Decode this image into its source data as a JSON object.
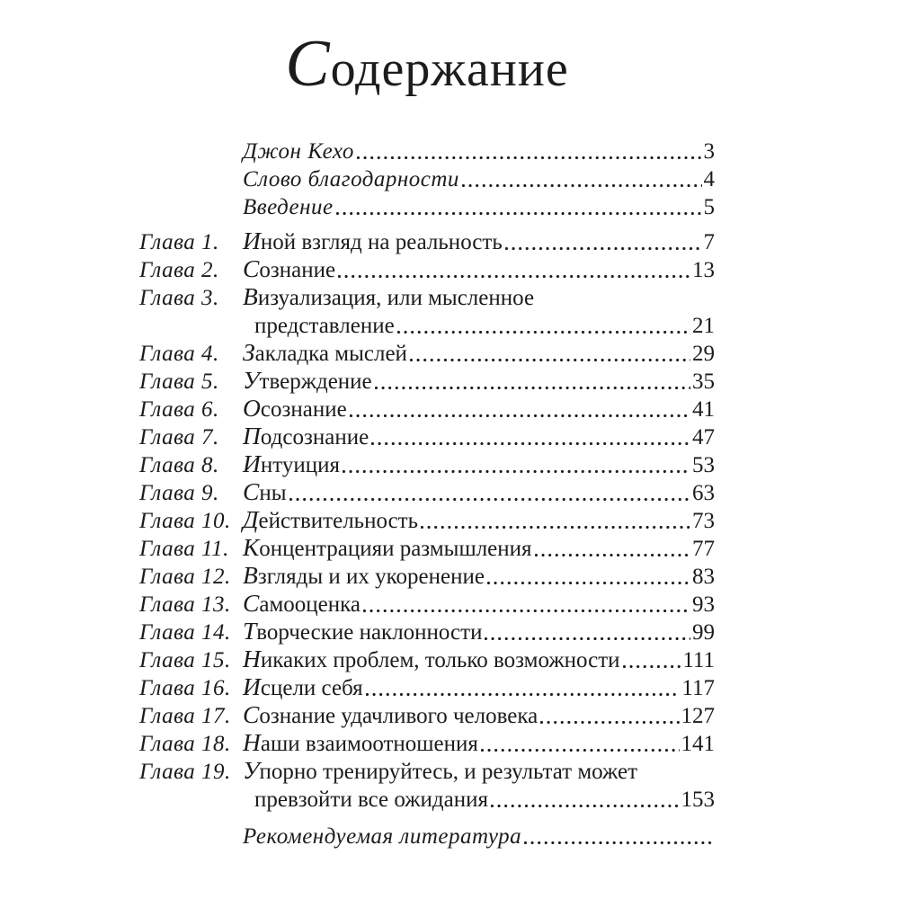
{
  "page": {
    "title": "Содержание"
  },
  "colors": {
    "text": "#1c1c1c",
    "background": "#ffffff"
  },
  "toc": {
    "entries": [
      {
        "label": "",
        "script": true,
        "lines": [
          "Джон Кехо"
        ],
        "page": "3"
      },
      {
        "label": "",
        "script": true,
        "lines": [
          "Слово благодарности"
        ],
        "page": "4"
      },
      {
        "label": "",
        "script": true,
        "lines": [
          "Введение"
        ],
        "page": "5"
      },
      {
        "label": "Глава 1.",
        "script": false,
        "lines": [
          "Иной взгляд на реальность"
        ],
        "page": "7"
      },
      {
        "label": "Глава 2.",
        "script": false,
        "lines": [
          "Сознание"
        ],
        "page": "13"
      },
      {
        "label": "Глава 3.",
        "script": false,
        "lines": [
          "Визуализация, или мысленное",
          "представление"
        ],
        "page": "21"
      },
      {
        "label": "Глава 4.",
        "script": false,
        "lines": [
          "Закладка мыслей"
        ],
        "page": "29"
      },
      {
        "label": "Глава 5.",
        "script": false,
        "lines": [
          "Утверждение"
        ],
        "page": "35"
      },
      {
        "label": "Глава 6.",
        "script": false,
        "lines": [
          "Осознание"
        ],
        "page": "41"
      },
      {
        "label": "Глава 7.",
        "script": false,
        "lines": [
          "Подсознание"
        ],
        "page": "47"
      },
      {
        "label": "Глава 8.",
        "script": false,
        "lines": [
          "Интуиция"
        ],
        "page": "53"
      },
      {
        "label": "Глава 9.",
        "script": false,
        "lines": [
          "Сны"
        ],
        "page": "63"
      },
      {
        "label": "Глава 10.",
        "script": false,
        "lines": [
          "Действительность"
        ],
        "page": "73"
      },
      {
        "label": "Глава 11.",
        "script": false,
        "lines": [
          "Концентрацияи размышления"
        ],
        "page": "77"
      },
      {
        "label": "Глава 12.",
        "script": false,
        "lines": [
          "Взгляды и их укоренение"
        ],
        "page": "83"
      },
      {
        "label": "Глава 13.",
        "script": false,
        "lines": [
          "Самооценка"
        ],
        "page": "93"
      },
      {
        "label": "Глава 14.",
        "script": false,
        "lines": [
          "Творческие наклонности"
        ],
        "page": "99"
      },
      {
        "label": "Глава 15.",
        "script": false,
        "lines": [
          "Никаких проблем, только возможности"
        ],
        "page": "111"
      },
      {
        "label": "Глава 16.",
        "script": false,
        "lines": [
          "Исцели себя"
        ],
        "page": "117"
      },
      {
        "label": "Глава 17.",
        "script": false,
        "lines": [
          "Сознание удачливого человека"
        ],
        "page": "127"
      },
      {
        "label": "Глава 18.",
        "script": false,
        "lines": [
          "Наши взаимоотношения"
        ],
        "page": "141"
      },
      {
        "label": "Глава 19.",
        "script": false,
        "lines": [
          "Упорно тренируйтесь, и результат может",
          "превзойти все ожидания"
        ],
        "page": "153"
      },
      {
        "label": "",
        "script": true,
        "lines": [
          "Рекомендуемая литература"
        ],
        "page": ""
      }
    ]
  }
}
